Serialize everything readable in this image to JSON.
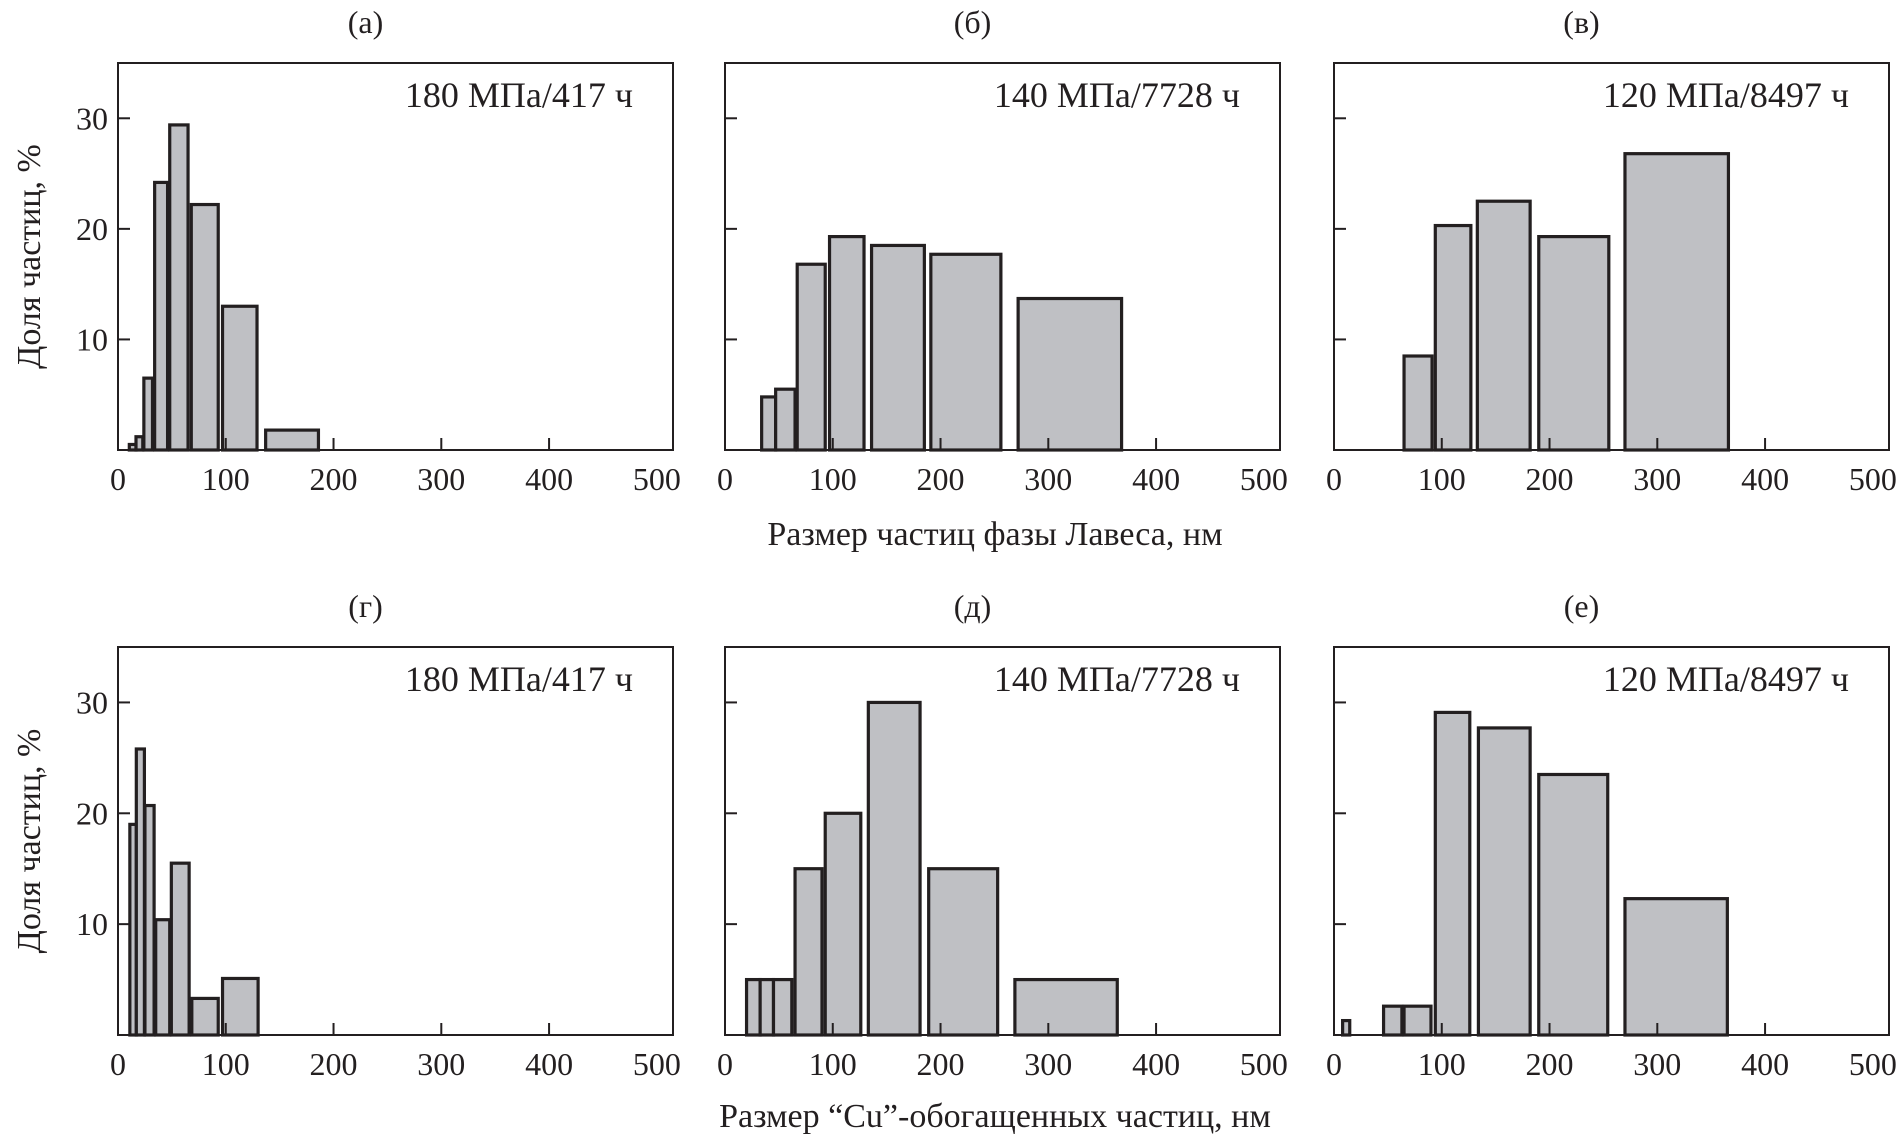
{
  "chart_data": [
    {
      "type": "bar",
      "panel": "(а)",
      "annotation": "180 МПа/417 ч",
      "ylabel": "Доля частиц, %",
      "xlim": [
        0,
        515
      ],
      "ylim": [
        0,
        35
      ],
      "xticks": [
        0,
        100,
        200,
        300,
        400,
        500
      ],
      "yticks": [
        10,
        20,
        30
      ],
      "bins": [
        [
          10.5,
          16.7,
          0.5
        ],
        [
          16.7,
          23,
          1.2
        ],
        [
          24,
          32,
          6.5
        ],
        [
          34,
          46,
          24.2
        ],
        [
          48,
          65,
          29.4
        ],
        [
          68,
          93,
          22.2
        ],
        [
          97,
          129,
          13.0
        ],
        [
          137,
          186,
          1.8
        ]
      ]
    },
    {
      "type": "bar",
      "panel": "(б)",
      "annotation": "140 МПа/7728 ч",
      "ylabel": "",
      "xlim": [
        0,
        515
      ],
      "ylim": [
        0,
        35
      ],
      "xticks": [
        0,
        100,
        200,
        300,
        400,
        500
      ],
      "yticks": [
        10,
        20,
        30
      ],
      "bins": [
        [
          34,
          47,
          4.8
        ],
        [
          47,
          65,
          5.5
        ],
        [
          67,
          93,
          16.8
        ],
        [
          97,
          129,
          19.3
        ],
        [
          136,
          185,
          18.5
        ],
        [
          191,
          256,
          17.7
        ],
        [
          272,
          368,
          13.7
        ]
      ]
    },
    {
      "type": "bar",
      "panel": "(в)",
      "annotation": "120 МПа/8497 ч",
      "ylabel": "",
      "xlim": [
        0,
        515
      ],
      "ylim": [
        0,
        35
      ],
      "xticks": [
        0,
        100,
        200,
        300,
        400,
        500
      ],
      "yticks": [
        10,
        20,
        30
      ],
      "bins": [
        [
          65,
          91,
          8.5
        ],
        [
          94,
          127,
          20.3
        ],
        [
          133,
          182,
          22.5
        ],
        [
          190,
          255,
          19.3
        ],
        [
          270,
          366,
          26.8
        ]
      ]
    },
    {
      "type": "bar",
      "panel": "(г)",
      "annotation": "180 МПа/417 ч",
      "ylabel": "Доля частиц, %",
      "xlim": [
        0,
        515
      ],
      "ylim": [
        0,
        35
      ],
      "xticks": [
        0,
        100,
        200,
        300,
        400,
        500
      ],
      "yticks": [
        10,
        20,
        30
      ],
      "bins": [
        [
          11,
          17,
          19.0
        ],
        [
          17,
          24.5,
          25.8
        ],
        [
          25,
          33.5,
          20.7
        ],
        [
          35,
          48,
          10.4
        ],
        [
          49.5,
          66,
          15.5
        ],
        [
          68.5,
          93,
          3.3
        ],
        [
          97,
          130,
          5.1
        ]
      ]
    },
    {
      "type": "bar",
      "panel": "(д)",
      "annotation": "140 МПа/7728 ч",
      "ylabel": "",
      "xlim": [
        0,
        515
      ],
      "ylim": [
        0,
        35
      ],
      "xticks": [
        0,
        100,
        200,
        300,
        400,
        500
      ],
      "yticks": [
        10,
        20,
        30
      ],
      "bins": [
        [
          20,
          32.6,
          5.0
        ],
        [
          32.6,
          45,
          5.0
        ],
        [
          45,
          62,
          5.0
        ],
        [
          65,
          90,
          15.0
        ],
        [
          93,
          126,
          20.0
        ],
        [
          133,
          181,
          30.0
        ],
        [
          189,
          253,
          15.0
        ],
        [
          269,
          364,
          5.0
        ]
      ]
    },
    {
      "type": "bar",
      "panel": "(е)",
      "annotation": "120 МПа/8497 ч",
      "ylabel": "",
      "xlim": [
        0,
        515
      ],
      "ylim": [
        0,
        35
      ],
      "xticks": [
        0,
        100,
        200,
        300,
        400,
        500
      ],
      "yticks": [
        10,
        20,
        30
      ],
      "bins": [
        [
          8,
          14.6,
          1.3
        ],
        [
          46,
          63,
          2.6
        ],
        [
          65,
          90,
          2.6
        ],
        [
          94,
          126,
          29.1
        ],
        [
          134,
          182,
          27.7
        ],
        [
          190,
          254,
          23.5
        ],
        [
          270,
          365,
          12.3
        ]
      ]
    }
  ],
  "xlabels": {
    "top": "Размер частиц фазы Лавеса, нм",
    "bottom": "Размер “Cu”-обогащенных частиц, нм"
  },
  "colors": {
    "bar_fill": "#bfc0c4",
    "stroke": "#231f20"
  }
}
